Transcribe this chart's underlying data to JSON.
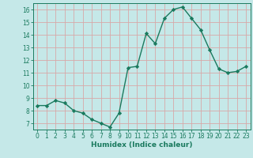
{
  "x": [
    0,
    1,
    2,
    3,
    4,
    5,
    6,
    7,
    8,
    9,
    10,
    11,
    12,
    13,
    14,
    15,
    16,
    17,
    18,
    19,
    20,
    21,
    22,
    23
  ],
  "y": [
    8.4,
    8.4,
    8.8,
    8.6,
    8.0,
    7.8,
    7.3,
    7.0,
    6.7,
    7.8,
    11.4,
    11.5,
    14.1,
    13.3,
    15.3,
    16.0,
    16.2,
    15.3,
    14.4,
    12.8,
    11.3,
    11.0,
    11.1,
    11.5
  ],
  "line_color": "#1a7a5e",
  "marker": "D",
  "markersize": 2.2,
  "linewidth": 1.0,
  "xlim": [
    -0.5,
    23.5
  ],
  "ylim": [
    6.5,
    16.5
  ],
  "yticks": [
    7,
    8,
    9,
    10,
    11,
    12,
    13,
    14,
    15,
    16
  ],
  "xticks": [
    0,
    1,
    2,
    3,
    4,
    5,
    6,
    7,
    8,
    9,
    10,
    11,
    12,
    13,
    14,
    15,
    16,
    17,
    18,
    19,
    20,
    21,
    22,
    23
  ],
  "xlabel": "Humidex (Indice chaleur)",
  "xlabel_fontsize": 6.5,
  "bg_color": "#c5e8e8",
  "grid_color": "#d8a8a8",
  "tick_fontsize": 5.5,
  "axis_color": "#1a7a5e"
}
